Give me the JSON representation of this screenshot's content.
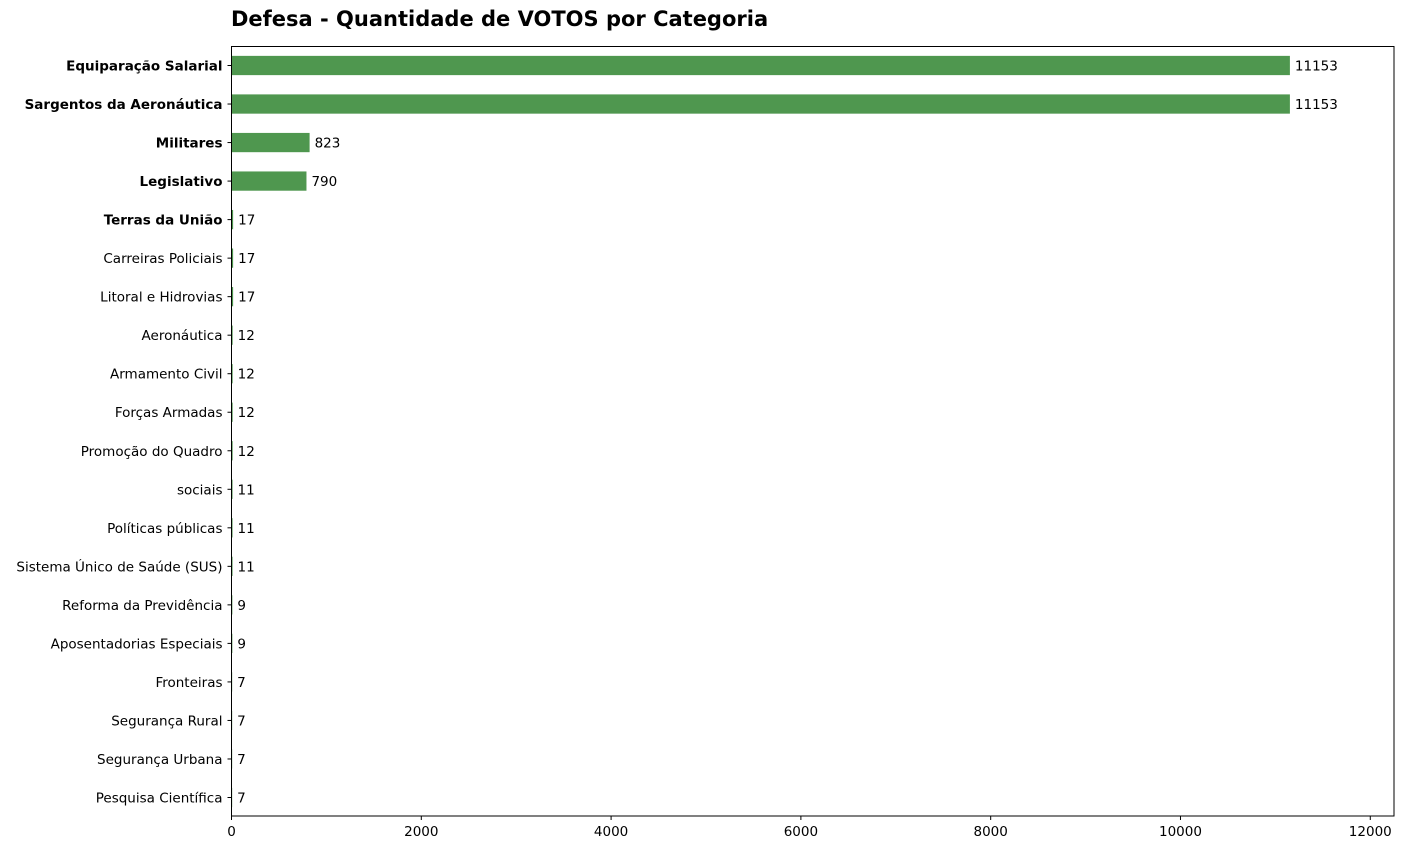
{
  "chart_data": {
    "type": "bar",
    "orientation": "horizontal",
    "title": "Defesa - Quantidade de VOTOS por Categoria",
    "xlabel": "",
    "ylabel": "",
    "xlim": [
      0,
      12250
    ],
    "xticks": [
      0,
      2000,
      4000,
      6000,
      8000,
      10000,
      12000
    ],
    "bar_color": "#4f974f",
    "grid": false,
    "categories": [
      "Equiparação Salarial",
      "Sargentos da Aeronáutica",
      "Militares",
      "Legislativo",
      "Terras da União",
      "Carreiras Policiais",
      "Litoral e Hidrovias",
      "Aeronáutica",
      "Armamento Civil",
      "Forças Armadas",
      "Promoção do Quadro",
      "sociais",
      "Políticas públicas",
      "Sistema Único de Saúde (SUS)",
      "Reforma da Previdência",
      "Aposentadorias Especiais",
      "Fronteiras",
      "Segurança Rural",
      "Segurança Urbana",
      "Pesquisa Científica"
    ],
    "values": [
      11153,
      11153,
      823,
      790,
      17,
      17,
      17,
      12,
      12,
      12,
      12,
      11,
      11,
      11,
      9,
      9,
      7,
      7,
      7,
      7
    ],
    "bold_categories": [
      "Equiparação Salarial",
      "Sargentos da Aeronáutica",
      "Militares",
      "Legislativo",
      "Terras da União"
    ]
  }
}
